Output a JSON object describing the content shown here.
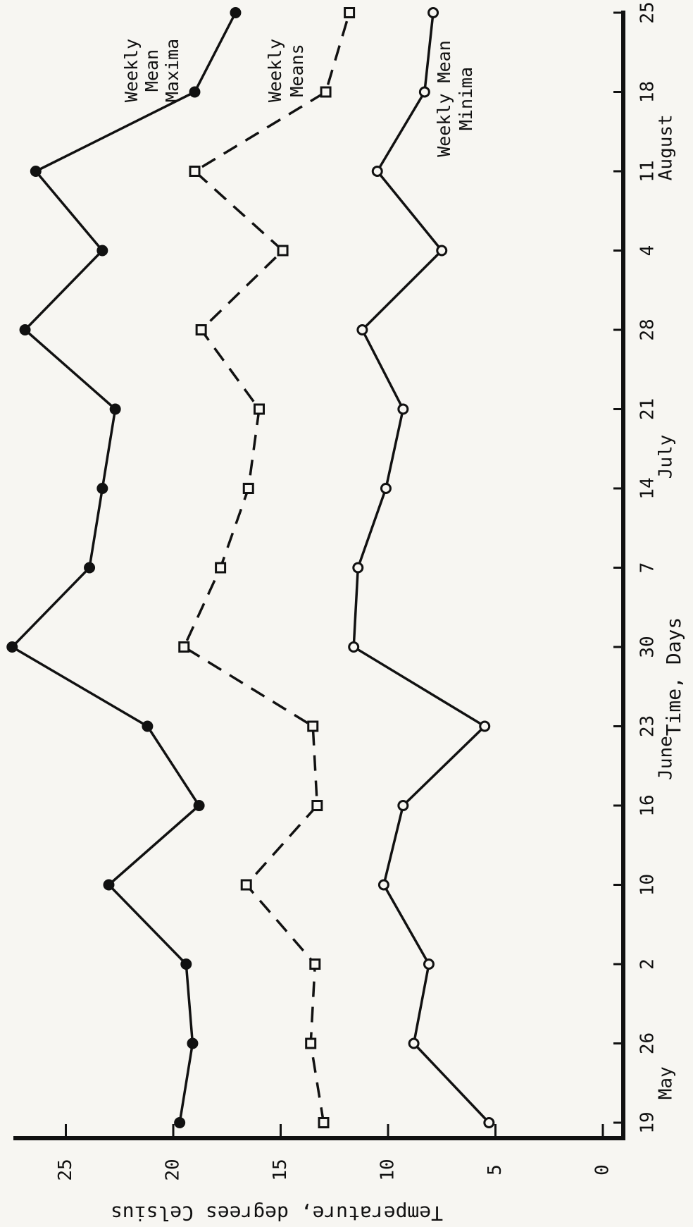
{
  "chart_data": {
    "type": "line",
    "xlabel": "Time, Days",
    "ylabel": "Temperature, degrees Celsius",
    "ylim": [
      0,
      27
    ],
    "yticks": [
      0,
      5,
      10,
      15,
      20,
      25
    ],
    "grid": false,
    "orientation": "rotated 90° clockwise (page printed sideways)",
    "x": [
      "May 19",
      "May 26",
      "June 2",
      "June 10",
      "June 16",
      "June 23",
      "June 30",
      "July 7",
      "July 14",
      "July 21",
      "July 28",
      "Aug 4",
      "Aug 11",
      "Aug 18",
      "Aug 25"
    ],
    "xtick_labels": [
      "19",
      "26",
      "2",
      "10",
      "16",
      "23",
      "30",
      "7",
      "14",
      "21",
      "28",
      "4",
      "11",
      "18",
      "25"
    ],
    "month_labels": [
      {
        "text": "May",
        "at_index": 0.5
      },
      {
        "text": "June",
        "at_index": 4.6
      },
      {
        "text": "July",
        "at_index": 8.4
      },
      {
        "text": "August",
        "at_index": 12.3
      }
    ],
    "series": [
      {
        "name": "Weekly Mean Maxima",
        "label_lines": [
          "Weekly",
          "Mean",
          "Maxima"
        ],
        "style": "solid",
        "marker": "filled-circle",
        "values": [
          19.7,
          19.1,
          19.4,
          23.0,
          18.8,
          21.2,
          27.5,
          23.9,
          23.3,
          22.7,
          26.9,
          23.3,
          26.4,
          19.0,
          17.1
        ]
      },
      {
        "name": "Weekly Means",
        "label_lines": [
          "Weekly",
          "Means"
        ],
        "style": "dashed",
        "marker": "open-square",
        "values": [
          13.0,
          13.6,
          13.4,
          16.6,
          13.3,
          13.5,
          19.5,
          17.8,
          16.5,
          16.0,
          18.7,
          14.9,
          19.0,
          12.9,
          11.8
        ]
      },
      {
        "name": "Weekly Mean Minima",
        "label_lines": [
          "Weekly Mean",
          "Minima"
        ],
        "style": "solid",
        "marker": "open-circle",
        "values": [
          5.3,
          8.8,
          8.1,
          10.2,
          9.3,
          5.5,
          11.6,
          11.4,
          10.1,
          9.3,
          11.2,
          7.5,
          10.5,
          8.3,
          7.9
        ]
      }
    ]
  }
}
